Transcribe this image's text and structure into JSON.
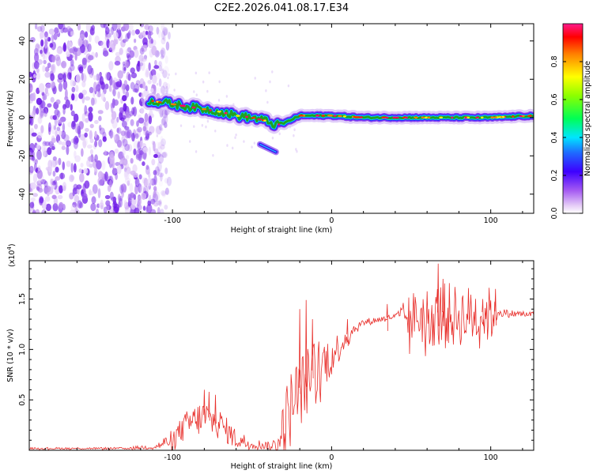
{
  "title": "C2E2.2026.041.08.17.E34",
  "colors": {
    "spectrum_line": "#21a121",
    "snr_line": "#e8302c",
    "noise": "#7a2ee8",
    "axis": "#000000"
  },
  "chart_data": [
    {
      "type": "heatmap",
      "title": "C2E2.2026.041.08.17.E34",
      "xlabel": "Height of straight line (km)",
      "ylabel": "Frequency (Hz)",
      "xlim": [
        -190,
        127
      ],
      "ylim": [
        -50,
        49
      ],
      "xticks": [
        -100,
        0,
        100
      ],
      "xtick_labels": [
        "-100",
        "0",
        "100"
      ],
      "yticks": [
        -40,
        -20,
        0,
        20,
        40
      ],
      "ytick_labels": [
        "-40",
        "-20",
        "0",
        "20",
        "40"
      ],
      "noise_region_x": [
        -190,
        -110
      ],
      "signal_track": {
        "x": [
          -115,
          -100,
          -85,
          -70,
          -60,
          -50,
          -40,
          -35,
          -30,
          -20,
          0,
          20,
          50,
          100,
          127
        ],
        "y": [
          9,
          7,
          5,
          3,
          1,
          0,
          -2,
          -4,
          -3,
          1,
          1,
          0,
          0,
          0,
          1
        ]
      },
      "branch": {
        "x": [
          -45,
          -40,
          -35
        ],
        "y": [
          -14,
          -16,
          -18
        ]
      },
      "colorbar": {
        "label": "Normalized spectral amplitude",
        "range": [
          0,
          1
        ],
        "ticks": [
          0.0,
          0.2,
          0.4,
          0.6,
          0.8
        ],
        "tick_labels": [
          "0.0",
          "0.2",
          "0.4",
          "0.6",
          "0.8"
        ]
      }
    },
    {
      "type": "line",
      "xlabel": "Height of straight line (km)",
      "ylabel": "SNR (10 * v/v)",
      "scale_label": "(x10",
      "scale_exp": "4",
      "xlim": [
        -190,
        127
      ],
      "ylim": [
        0,
        1.88
      ],
      "xticks": [
        -100,
        0,
        100
      ],
      "xtick_labels": [
        "-100",
        "0",
        "100"
      ],
      "yticks": [
        0.5,
        1.0,
        1.5
      ],
      "ytick_labels": [
        "0.5",
        "1.0",
        "1.5"
      ],
      "series": [
        {
          "name": "SNR",
          "envelope_x": [
            -190,
            -130,
            -110,
            -100,
            -90,
            -80,
            -70,
            -60,
            -50,
            -40,
            -35,
            -30,
            -25,
            -20,
            -15,
            -10,
            -5,
            0,
            5,
            10,
            15,
            20,
            30,
            40,
            50,
            60,
            70,
            80,
            90,
            100,
            105,
            110,
            127
          ],
          "envelope_y": [
            0.02,
            0.02,
            0.04,
            0.12,
            0.28,
            0.35,
            0.27,
            0.12,
            0.07,
            0.05,
            0.05,
            0.25,
            0.5,
            0.62,
            0.72,
            0.84,
            0.9,
            0.95,
            1.05,
            1.15,
            1.22,
            1.27,
            1.3,
            1.33,
            1.35,
            1.36,
            1.37,
            1.36,
            1.37,
            1.37,
            1.38,
            1.36,
            1.35
          ],
          "noise_amp": [
            0.01,
            0.01,
            0.03,
            0.1,
            0.15,
            0.18,
            0.15,
            0.1,
            0.06,
            0.04,
            0.1,
            0.35,
            0.4,
            0.35,
            0.35,
            0.3,
            0.25,
            0.2,
            0.15,
            0.1,
            0.06,
            0.04,
            0.03,
            0.03,
            0.25,
            0.3,
            0.35,
            0.3,
            0.3,
            0.28,
            0.05,
            0.04,
            0.03
          ],
          "peaks_x": [
            -80,
            -77,
            -73,
            -20,
            -16,
            -12,
            10,
            35,
            67,
            70,
            95,
            103
          ],
          "peaks_y": [
            0.6,
            0.58,
            0.55,
            1.4,
            1.49,
            1.3,
            1.3,
            1.45,
            1.85,
            1.7,
            1.5,
            1.6
          ]
        }
      ]
    }
  ]
}
